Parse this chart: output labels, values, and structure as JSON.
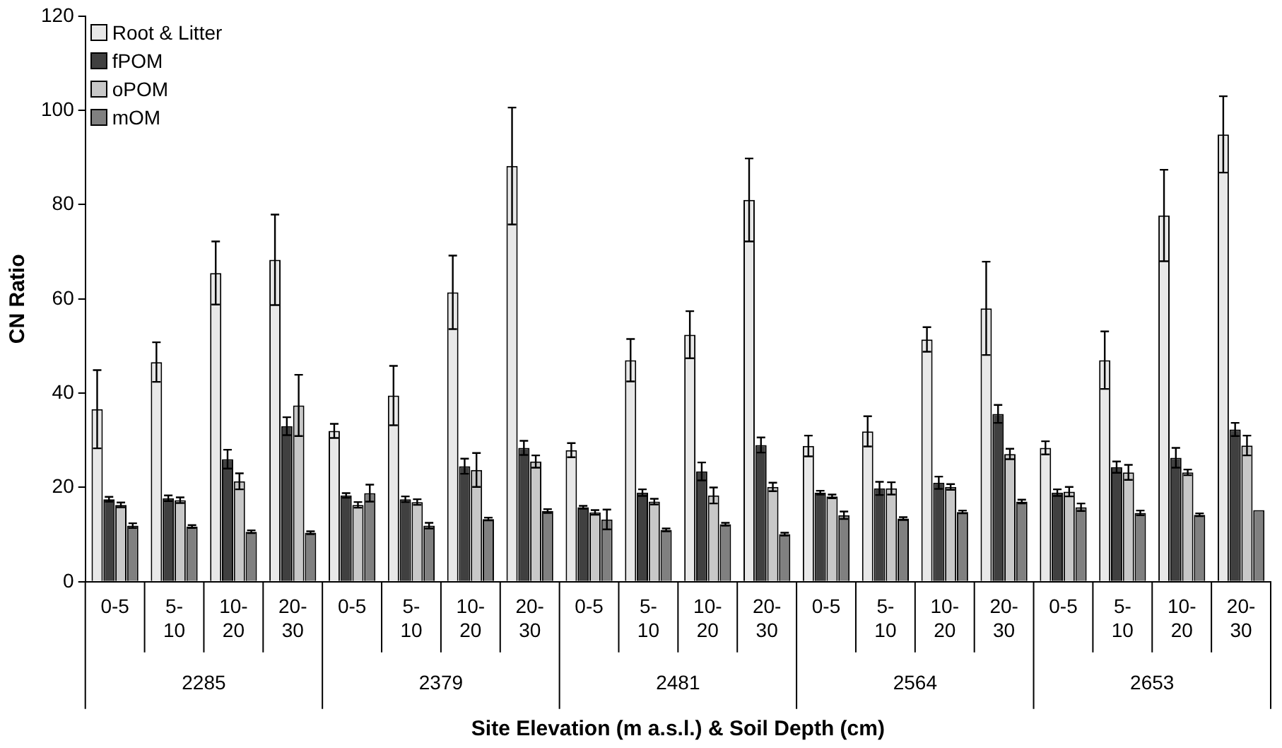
{
  "chart_data": {
    "type": "bar",
    "xlabel": "Site Elevation (m a.s.l.) & Soil Depth (cm)",
    "ylabel": "CN Ratio",
    "categories": [
      "0-5",
      "5-10",
      "10-20",
      "20-30",
      "0-5",
      "5-10",
      "10-20",
      "20-30",
      "0-5",
      "5-10",
      "10-20",
      "20-30",
      "0-5",
      "5-10",
      "10-20",
      "20-30",
      "0-5",
      "5-10",
      "10-20",
      "20-30"
    ],
    "annotations": [
      "2285",
      "2379",
      "2481",
      "2564",
      "2653"
    ],
    "series": [
      {
        "name": "Root & Litter",
        "color": "#e8e8e8",
        "values": [
          36.6,
          46.6,
          65.5,
          68.3,
          32,
          39.5,
          61.4,
          88.2,
          27.9,
          47,
          52.4,
          81,
          28.8,
          31.9,
          51.4,
          58,
          28.4,
          47,
          77.7,
          94.9
        ],
        "errors": [
          8.3,
          4.2,
          6.7,
          9.6,
          1.5,
          6.3,
          7.8,
          12.4,
          1.5,
          4.5,
          5,
          8.8,
          2.2,
          3.2,
          2.6,
          9.9,
          1.4,
          6.1,
          9.7,
          8.1
        ]
      },
      {
        "name": "fPOM",
        "color": "#404040",
        "values": [
          17.5,
          17.7,
          26,
          33,
          18.3,
          17.5,
          24.5,
          28.4,
          15.8,
          18.9,
          23.4,
          29,
          18.9,
          19.8,
          21,
          35.6,
          18.9,
          24.3,
          26.3,
          32.3
        ],
        "errors": [
          0.5,
          0.6,
          2,
          1.9,
          0.5,
          0.6,
          1.6,
          1.5,
          0.3,
          0.7,
          1.9,
          1.6,
          0.4,
          1.4,
          1.3,
          1.9,
          0.7,
          1.2,
          2.1,
          1.4
        ]
      },
      {
        "name": "oPOM",
        "color": "#c8c8c8",
        "values": [
          16.3,
          17.3,
          21.3,
          37.4,
          16.3,
          16.9,
          23.7,
          25.5,
          14.7,
          17,
          18.3,
          20.1,
          18.1,
          19.8,
          20.1,
          27.1,
          19.1,
          23.2,
          23.2,
          28.9
        ],
        "errors": [
          0.5,
          0.6,
          1.7,
          6.5,
          0.6,
          0.6,
          3.6,
          1.3,
          0.5,
          0.6,
          1.7,
          0.9,
          0.4,
          1.3,
          0.6,
          1.1,
          1,
          1.6,
          0.6,
          2.1
        ]
      },
      {
        "name": "mOM",
        "color": "#808080",
        "values": [
          11.9,
          11.7,
          10.6,
          10.4,
          18.8,
          11.9,
          13.3,
          15,
          13.2,
          11,
          12.2,
          10.1,
          14.1,
          13.4,
          14.8,
          17,
          15.8,
          14.6,
          14.2,
          15.2
        ],
        "errors": [
          0.5,
          0.3,
          0.3,
          0.3,
          1.8,
          0.6,
          0.3,
          0.4,
          2.1,
          0.3,
          0.3,
          0.3,
          0.8,
          0.3,
          0.3,
          0.4,
          0.8,
          0.5,
          0.3,
          null
        ]
      }
    ],
    "ylim": [
      0,
      120
    ],
    "yticks": [
      0,
      20,
      40,
      60,
      80,
      100,
      120
    ],
    "grid": false,
    "legend": "top left"
  }
}
